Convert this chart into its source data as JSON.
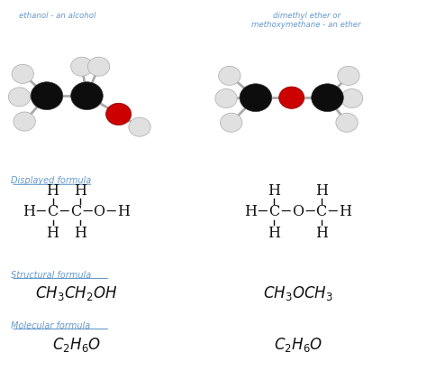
{
  "background_color": "#ffffff",
  "title_color": "#6699cc",
  "label_color": "#6699cc",
  "text_color": "#111111",
  "figsize": [
    4.74,
    4.11
  ],
  "dpi": 100,
  "ethanol_title": "ethanol - an alcohol",
  "ether_title_line1": "dimethyl ether or",
  "ether_title_line2": "methoxymethane - an ether",
  "displayed_formula_label": "Displayed formula",
  "structural_formula_label": "Structural formula",
  "molecular_formula_label": "Molecular formula"
}
